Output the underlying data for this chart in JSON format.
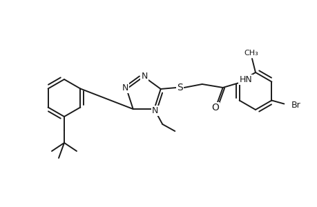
{
  "background": "#ffffff",
  "line_color": "#1a1a1a",
  "line_width": 1.4,
  "font_size": 9,
  "figsize": [
    4.6,
    3.0
  ],
  "dpi": 100,
  "xlim": [
    0,
    460
  ],
  "ylim": [
    0,
    300
  ]
}
